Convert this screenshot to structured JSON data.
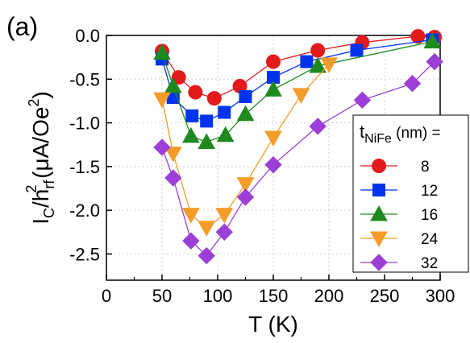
{
  "panel_label": "(a)",
  "chart_data": {
    "type": "line",
    "title": "",
    "xlabel": "T (K)",
    "ylabel_parts": {
      "I": "I",
      "c_sub": "C",
      "slash_h": "/h",
      "rf_sub": "rf",
      "sq_sup": "2",
      "unit_open": " (μA/Oe",
      "unit_sup": "2",
      "unit_close": ")"
    },
    "xlim": [
      0,
      300
    ],
    "ylim": [
      -2.8,
      0
    ],
    "x_ticks": [
      0,
      50,
      100,
      150,
      200,
      250,
      300
    ],
    "y_ticks": [
      0.0,
      -0.5,
      -1.0,
      -1.5,
      -2.0,
      -2.5
    ],
    "x_tick_labels": [
      "0",
      "50",
      "100",
      "150",
      "200",
      "250",
      "300"
    ],
    "y_tick_labels": [
      "0.0",
      "-0.5",
      "-1.0",
      "-1.5",
      "-2.0",
      "-2.5"
    ],
    "grid": true,
    "legend": {
      "placement": "right",
      "title_parts": {
        "t": "t",
        "sub": "NiFe",
        "rest": " (nm) ="
      }
    },
    "series": [
      {
        "name": "8",
        "color": "#e31a1c",
        "marker": "circle",
        "x": [
          50,
          65,
          80,
          97,
          120,
          150,
          190,
          230,
          280,
          295
        ],
        "y": [
          -0.18,
          -0.48,
          -0.65,
          -0.72,
          -0.58,
          -0.3,
          -0.17,
          -0.08,
          -0.01,
          -0.02
        ]
      },
      {
        "name": "12",
        "color": "#0033ee",
        "marker": "square",
        "x": [
          50,
          60,
          77,
          90,
          106,
          125,
          150,
          180,
          225,
          293
        ],
        "y": [
          -0.27,
          -0.71,
          -0.92,
          -0.98,
          -0.88,
          -0.7,
          -0.48,
          -0.3,
          -0.17,
          -0.05
        ]
      },
      {
        "name": "16",
        "color": "#1e8a1e",
        "marker": "triangle-up",
        "x": [
          50,
          60,
          76,
          90,
          107,
          125,
          150,
          190,
          293
        ],
        "y": [
          -0.2,
          -0.58,
          -1.15,
          -1.22,
          -1.14,
          -0.9,
          -0.62,
          -0.35,
          -0.07
        ]
      },
      {
        "name": "24",
        "color": "#f39c2a",
        "marker": "triangle-down",
        "x": [
          50,
          60,
          76,
          90,
          106,
          125,
          150,
          175,
          200
        ],
        "y": [
          -0.73,
          -1.35,
          -2.05,
          -2.2,
          -2.05,
          -1.7,
          -1.17,
          -0.68,
          -0.33
        ]
      },
      {
        "name": "32",
        "color": "#9b3fd6",
        "marker": "diamond",
        "x": [
          50,
          60,
          76,
          90,
          106,
          125,
          150,
          190,
          230,
          275,
          295
        ],
        "y": [
          -1.28,
          -1.63,
          -2.35,
          -2.52,
          -2.25,
          -1.85,
          -1.48,
          -1.04,
          -0.74,
          -0.55,
          -0.3
        ]
      }
    ]
  }
}
